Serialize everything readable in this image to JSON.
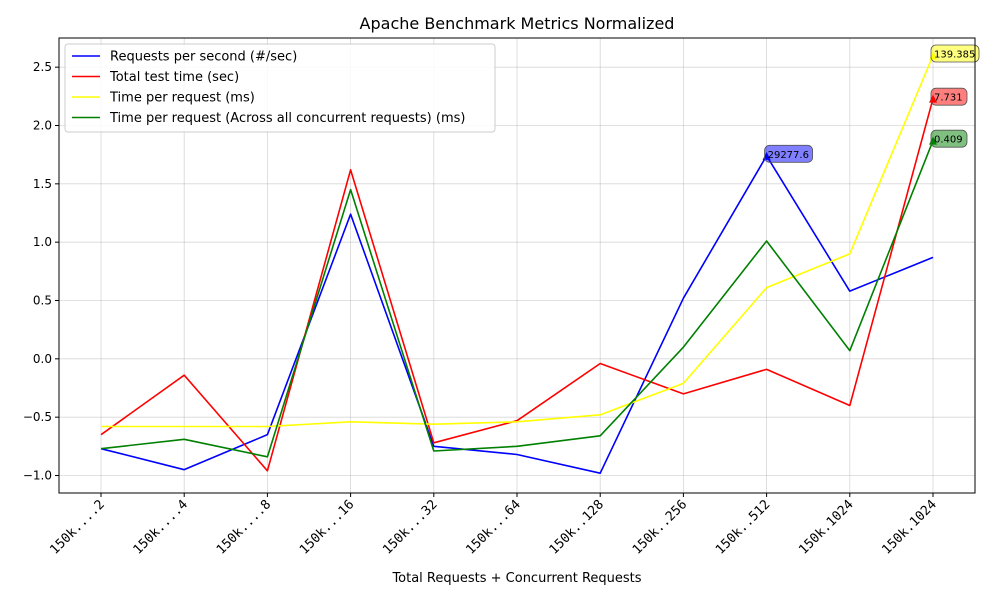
{
  "chart_data": {
    "type": "line",
    "title": "Apache Benchmark Metrics Normalized",
    "xlabel": "Total Requests + Concurrent Requests",
    "ylabel": "",
    "categories": [
      "150k....2",
      "150k....4",
      "150k....8",
      "150k...16",
      "150k...32",
      "150k...64",
      "150k..128",
      "150k..256",
      "150k..512",
      "150k.1024",
      "150k.1024"
    ],
    "ylim": [
      -1.15,
      2.75
    ],
    "yticks": [
      -1.0,
      -0.5,
      0.0,
      0.5,
      1.0,
      1.5,
      2.0,
      2.5
    ],
    "ytick_labels": [
      "−1.0",
      "−0.5",
      "0.0",
      "0.5",
      "1.0",
      "1.5",
      "2.0",
      "2.5"
    ],
    "grid": true,
    "legend_position": "top-left",
    "series": [
      {
        "name": "Requests per second (#/sec)",
        "color": "#0000ff",
        "values": [
          -0.77,
          -0.95,
          -0.65,
          1.24,
          -0.75,
          -0.82,
          -0.98,
          0.52,
          1.74,
          0.58,
          0.87
        ],
        "annotation": {
          "index": 8,
          "text": "29277.6"
        }
      },
      {
        "name": "Total test time (sec)",
        "color": "#ff0000",
        "values": [
          -0.65,
          -0.14,
          -0.96,
          1.62,
          -0.72,
          -0.53,
          -0.04,
          -0.3,
          -0.09,
          -0.4,
          2.23
        ],
        "annotation": {
          "index": 10,
          "text": "7.731"
        }
      },
      {
        "name": "Time per request (ms)",
        "color": "#ffff00",
        "values": [
          -0.58,
          -0.58,
          -0.58,
          -0.54,
          -0.56,
          -0.54,
          -0.48,
          -0.21,
          0.61,
          0.9,
          2.6
        ],
        "annotation": {
          "index": 10,
          "text": "139.385"
        }
      },
      {
        "name": "Time per request (Across all concurrent requests) (ms)",
        "color": "#008000",
        "values": [
          -0.77,
          -0.69,
          -0.84,
          1.45,
          -0.79,
          -0.75,
          -0.66,
          0.1,
          1.01,
          0.07,
          1.87
        ],
        "annotation": {
          "index": 10,
          "text": "0.409"
        }
      }
    ]
  }
}
